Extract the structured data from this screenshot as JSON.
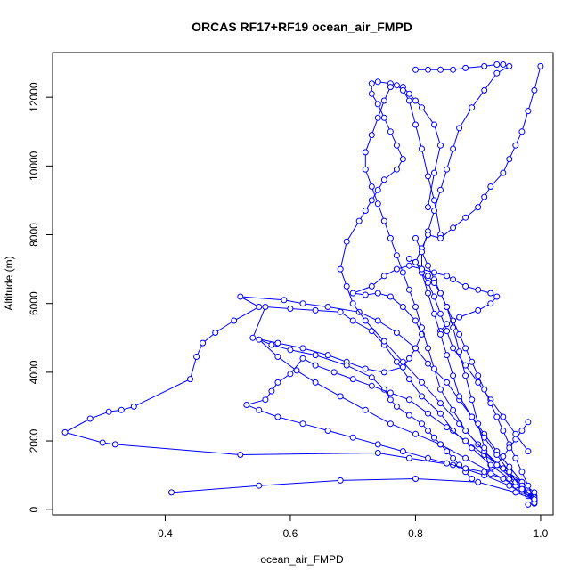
{
  "chart_data": {
    "type": "scatter",
    "title": "ORCAS RF17+RF19 ocean_air_FMPD",
    "xlabel": "ocean_air_FMPD",
    "ylabel": "Altitude (m)",
    "xlim": [
      0.22,
      1.02
    ],
    "ylim": [
      -150,
      13300
    ],
    "xticks": [
      0.4,
      0.6,
      0.8,
      1.0
    ],
    "xtick_labels": [
      "0.4",
      "0.6",
      "0.8",
      "1.0"
    ],
    "yticks": [
      0,
      2000,
      4000,
      6000,
      8000,
      10000,
      12000
    ],
    "ytick_labels": [
      "0",
      "2000",
      "4000",
      "6000",
      "8000",
      "10000",
      "12000"
    ],
    "grid": false,
    "series_color": "#0000ff",
    "series": [
      {
        "x": [
          0.99,
          0.98,
          0.97,
          0.95,
          0.93,
          0.91,
          0.89,
          0.87,
          0.85,
          0.82,
          0.8,
          0.77,
          0.74,
          0.71,
          0.66,
          0.62,
          0.59,
          0.52,
          0.55,
          0.51,
          0.48,
          0.46,
          0.45,
          0.44,
          0.35,
          0.33,
          0.31,
          0.28,
          0.24,
          0.3,
          0.32,
          0.52,
          0.74,
          0.79,
          0.86,
          0.91,
          0.95,
          0.98,
          0.99,
          0.99,
          0.99,
          0.98
        ],
        "y": [
          200,
          450,
          800,
          1250,
          1700,
          2200,
          2700,
          3200,
          3700,
          4250,
          4700,
          5150,
          5500,
          5750,
          5900,
          6000,
          6100,
          6200,
          5900,
          5500,
          5150,
          4850,
          4450,
          3800,
          3000,
          2900,
          2850,
          2650,
          2250,
          1950,
          1900,
          1600,
          1650,
          1500,
          1300,
          1000,
          700,
          400,
          250,
          200,
          180,
          150
        ]
      },
      {
        "x": [
          0.99,
          0.97,
          0.95,
          0.92,
          0.89,
          0.86,
          0.84,
          0.81,
          0.79,
          0.77,
          0.75,
          0.73,
          0.7,
          0.68,
          0.64,
          0.6,
          0.56,
          0.54,
          0.58,
          0.62,
          0.66,
          0.69,
          0.72,
          0.75,
          0.78,
          0.79,
          0.8,
          0.81,
          0.8,
          0.78,
          0.76,
          0.74,
          0.72,
          0.7,
          0.73,
          0.75,
          0.77,
          0.79,
          0.81,
          0.83,
          0.85,
          0.86,
          0.88,
          0.9,
          0.92,
          0.93,
          0.92,
          0.9,
          0.87,
          0.85,
          0.84
        ],
        "y": [
          300,
          550,
          900,
          1300,
          1800,
          2300,
          2800,
          3300,
          3800,
          4300,
          4800,
          5200,
          5500,
          5750,
          5800,
          5850,
          5900,
          5000,
          4850,
          4700,
          4500,
          4300,
          4100,
          4000,
          4150,
          4400,
          4700,
          5100,
          5500,
          5900,
          6200,
          6300,
          6250,
          6300,
          6500,
          6800,
          7000,
          7100,
          7000,
          6900,
          6800,
          6700,
          6500,
          6400,
          6300,
          6200,
          6000,
          5800,
          5600,
          5400,
          5200
        ]
      },
      {
        "x": [
          0.99,
          0.96,
          0.92,
          0.88,
          0.84,
          0.8,
          0.76,
          0.72,
          0.68,
          0.64,
          0.61,
          0.58,
          0.55,
          0.57,
          0.6,
          0.64,
          0.69,
          0.73,
          0.75,
          0.76,
          0.77,
          0.79,
          0.81,
          0.82,
          0.83,
          0.84,
          0.85,
          0.86,
          0.87,
          0.88,
          0.89
        ],
        "y": [
          400,
          700,
          1100,
          1500,
          1900,
          2200,
          2500,
          2900,
          3300,
          3700,
          4050,
          4450,
          4950,
          4800,
          4650,
          4500,
          4200,
          3850,
          3500,
          3200,
          3000,
          2750,
          2500,
          2300,
          2100,
          1900,
          1700,
          1500,
          1300,
          1100,
          900
        ]
      },
      {
        "x": [
          0.99,
          0.97,
          0.94,
          0.91,
          0.88,
          0.85,
          0.82,
          0.79,
          0.76,
          0.73,
          0.7,
          0.67,
          0.64,
          0.62,
          0.6,
          0.58,
          0.57,
          0.56,
          0.53,
          0.55,
          0.58,
          0.62,
          0.66,
          0.7,
          0.74,
          0.78,
          0.82,
          0.85,
          0.88,
          0.91,
          0.94,
          0.96,
          0.98,
          0.99
        ],
        "y": [
          500,
          800,
          1200,
          1600,
          2000,
          2400,
          2800,
          3200,
          3400,
          3600,
          3800,
          4000,
          4200,
          4400,
          3950,
          3700,
          3450,
          3200,
          3050,
          2900,
          2700,
          2500,
          2300,
          2100,
          1900,
          1700,
          1500,
          1350,
          1200,
          1100,
          900,
          700,
          500,
          300
        ]
      },
      {
        "x": [
          0.99,
          0.96,
          0.93,
          0.9,
          0.87,
          0.84,
          0.81,
          0.78,
          0.75,
          0.72,
          0.7,
          0.69,
          0.68,
          0.69,
          0.71,
          0.72,
          0.73,
          0.74,
          0.75,
          0.77,
          0.78,
          0.77,
          0.76,
          0.75,
          0.74,
          0.73,
          0.73,
          0.74,
          0.76,
          0.78,
          0.79,
          0.8,
          0.81,
          0.83,
          0.84,
          0.83,
          0.82
        ],
        "y": [
          350,
          800,
          1300,
          1900,
          2500,
          3100,
          3700,
          4300,
          4900,
          5500,
          6000,
          6500,
          7000,
          7800,
          8400,
          8700,
          9000,
          9300,
          9600,
          9900,
          10200,
          10600,
          11000,
          11400,
          11800,
          12100,
          12400,
          12450,
          12400,
          12300,
          12100,
          11900,
          11700,
          11200,
          10600,
          9800,
          8800
        ]
      },
      {
        "x": [
          0.99,
          0.97,
          0.94,
          0.91,
          0.88,
          0.86,
          0.84,
          0.83,
          0.82,
          0.81,
          0.8,
          0.79,
          0.78,
          0.77,
          0.76,
          0.75,
          0.74,
          0.73,
          0.72,
          0.72,
          0.73,
          0.74,
          0.75,
          0.76,
          0.77,
          0.78,
          0.79,
          0.8,
          0.81,
          0.82,
          0.83,
          0.84
        ],
        "y": [
          250,
          700,
          1200,
          1700,
          2300,
          2900,
          3500,
          4100,
          4700,
          5300,
          5900,
          6400,
          6900,
          7400,
          7900,
          8400,
          8900,
          9400,
          9900,
          10400,
          10900,
          11400,
          11900,
          12300,
          12350,
          12200,
          11900,
          11200,
          10500,
          9700,
          9000,
          8000
        ]
      },
      {
        "x": [
          0.99,
          0.97,
          0.95,
          0.93,
          0.91,
          0.89,
          0.87,
          0.86,
          0.85,
          0.84,
          0.83,
          0.82,
          0.81,
          0.81,
          0.82,
          0.83,
          0.84,
          0.85,
          0.86,
          0.87,
          0.89,
          0.91,
          0.93,
          0.95,
          0.94,
          0.93,
          0.91,
          0.88,
          0.86,
          0.84,
          0.82,
          0.8
        ],
        "y": [
          200,
          600,
          1100,
          1600,
          2100,
          2700,
          3300,
          3900,
          4500,
          5100,
          5700,
          6300,
          6900,
          7500,
          8100,
          8700,
          9300,
          9900,
          10500,
          11100,
          11700,
          12200,
          12700,
          12900,
          12950,
          12950,
          12900,
          12850,
          12800,
          12800,
          12800,
          12800
        ]
      },
      {
        "x": [
          0.98,
          0.96,
          0.94,
          0.92,
          0.9,
          0.88,
          0.86,
          0.85,
          0.84,
          0.83,
          0.82,
          0.81,
          0.8,
          0.81,
          0.82,
          0.84,
          0.86,
          0.88,
          0.9,
          0.91,
          0.92,
          0.94,
          0.95,
          0.96,
          0.97,
          0.98,
          0.99,
          1.0
        ],
        "y": [
          1700,
          2200,
          2700,
          3200,
          3700,
          4200,
          4700,
          5200,
          5700,
          6200,
          6600,
          6900,
          7200,
          7600,
          8000,
          7900,
          8200,
          8500,
          8800,
          9100,
          9400,
          9800,
          10200,
          10600,
          11000,
          11600,
          12200,
          12900
        ]
      },
      {
        "x": [
          0.41,
          0.55,
          0.68,
          0.8,
          0.9,
          0.96,
          0.99,
          0.98,
          0.97,
          0.96,
          0.95,
          0.94,
          0.93,
          0.92,
          0.91,
          0.9,
          0.89,
          0.88,
          0.87,
          0.86,
          0.85,
          0.84,
          0.83,
          0.82,
          0.81,
          0.8
        ],
        "y": [
          500,
          700,
          850,
          900,
          800,
          500,
          300,
          700,
          1100,
          1500,
          1900,
          2300,
          2700,
          3100,
          3500,
          3900,
          4300,
          4700,
          5100,
          5500,
          5900,
          6300,
          6700,
          7100,
          7500,
          7900
        ]
      },
      {
        "x": [
          0.98,
          0.97,
          0.96,
          0.95,
          0.94,
          0.93,
          0.92,
          0.91,
          0.9,
          0.89,
          0.88,
          0.87,
          0.86,
          0.85,
          0.84,
          0.83,
          0.82,
          0.81,
          0.8,
          0.79
        ],
        "y": [
          2550,
          2300,
          2050,
          1800,
          1550,
          1300,
          1050,
          1800,
          2500,
          3200,
          3900,
          4600,
          5300,
          5900,
          6300,
          6600,
          6800,
          7000,
          7200,
          7300
        ]
      }
    ]
  }
}
